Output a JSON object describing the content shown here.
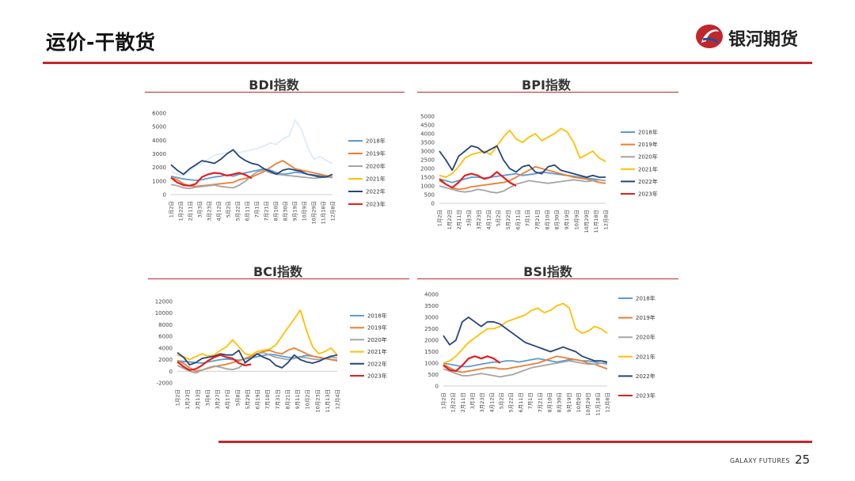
{
  "header": {
    "title": "运价-干散货",
    "logo_text": "银河期货"
  },
  "footer": {
    "brand": "GALAXY FUTURES",
    "page_number": "25"
  },
  "colors": {
    "accent": "#c0272d",
    "2018": "#5b9bd5",
    "2019": "#ed7d31",
    "2020": "#a5a5a5",
    "2021": "#ffc000",
    "2021_bdi": "#dcebf7",
    "2022": "#264478",
    "2023": "#e02020"
  },
  "chart_data": [
    {
      "id": "bdi",
      "type": "line",
      "title": "BDI指数",
      "yticks": [
        0,
        1000,
        2000,
        3000,
        4000,
        5000,
        6000
      ],
      "ylim": [
        0,
        6000
      ],
      "xticks": [
        "1月2日",
        "1月22日",
        "2月11日",
        "3月3日",
        "3月23日",
        "4月12日",
        "5月2日",
        "5月22日",
        "6月11日",
        "7月1日",
        "7月21日",
        "8月10日",
        "8月30日",
        "9月19日",
        "10月9日",
        "10月29日",
        "11月18日",
        "12月8日"
      ],
      "legend": [
        "2018年",
        "2019年",
        "2020年",
        "2021年",
        "2022年",
        "2023年"
      ],
      "series": [
        {
          "name": "2018年",
          "values": [
            1350,
            1250,
            1150,
            1100,
            1050,
            1100,
            1200,
            1300,
            1350,
            1450,
            1350,
            1500,
            1600,
            1700,
            1800,
            1900,
            1800,
            1600,
            1500,
            1550,
            1650,
            1600,
            1500,
            1450,
            1400,
            1350,
            1300
          ]
        },
        {
          "name": "2019年",
          "values": [
            1250,
            1100,
            800,
            650,
            600,
            650,
            700,
            750,
            800,
            850,
            900,
            1100,
            1200,
            1300,
            1500,
            1700,
            2000,
            2300,
            2500,
            2200,
            1900,
            1800,
            1700,
            1600,
            1500,
            1400,
            1300
          ]
        },
        {
          "name": "2020年",
          "values": [
            750,
            650,
            500,
            450,
            550,
            600,
            650,
            700,
            600,
            550,
            500,
            700,
            1000,
            1400,
            1700,
            1800,
            1600,
            1500,
            1450,
            1400,
            1350,
            1300,
            1250,
            1200,
            1250,
            1300,
            1250
          ]
        },
        {
          "name": "2021年",
          "values": [
            1700,
            1500,
            1400,
            1700,
            2100,
            2300,
            2600,
            2900,
            3000,
            3100,
            3200,
            3100,
            3200,
            3300,
            3400,
            3600,
            3800,
            3700,
            4100,
            4300,
            5500,
            4800,
            3500,
            2600,
            2800,
            2500,
            2300
          ]
        },
        {
          "name": "2022年",
          "values": [
            2200,
            1800,
            1500,
            1900,
            2200,
            2500,
            2400,
            2300,
            2600,
            3000,
            3300,
            2800,
            2500,
            2300,
            2200,
            1900,
            1700,
            1500,
            1800,
            1900,
            1800,
            1700,
            1500,
            1400,
            1300,
            1300,
            1500
          ]
        },
        {
          "name": "2023年",
          "values": [
            1250,
            900,
            700,
            650,
            800,
            1300,
            1500,
            1600,
            1550,
            1400,
            1500,
            1600,
            1450,
            1200
          ]
        }
      ]
    },
    {
      "id": "bpi",
      "type": "line",
      "title": "BPI指数",
      "yticks": [
        0,
        500,
        1000,
        1500,
        2000,
        2500,
        3000,
        3500,
        4000,
        4500,
        5000
      ],
      "ylim": [
        0,
        5000
      ],
      "xticks": [
        "1月2日",
        "1月22日",
        "2月11日",
        "3月3日",
        "3月23日",
        "4月12日",
        "5月2日",
        "5月22日",
        "6月11日",
        "7月1日",
        "7月21日",
        "8月10日",
        "8月30日",
        "9月19日",
        "10月9日",
        "10月29日",
        "11月18日",
        "12月8日"
      ],
      "legend": [
        "2018年",
        "2019年",
        "2020年",
        "2021年",
        "2022年",
        "2023年"
      ],
      "series": [
        {
          "name": "2018年",
          "values": [
            1400,
            1300,
            1200,
            1300,
            1400,
            1500,
            1500,
            1450,
            1500,
            1550,
            1600,
            1650,
            1700,
            1600,
            1650,
            1700,
            1800,
            1750,
            1700,
            1650,
            1600,
            1550,
            1500,
            1450,
            1400,
            1350,
            1300
          ]
        },
        {
          "name": "2019年",
          "values": [
            1300,
            1100,
            900,
            800,
            850,
            950,
            1000,
            1050,
            1100,
            1150,
            1200,
            1300,
            1500,
            1700,
            1900,
            2100,
            2000,
            1900,
            1800,
            1700,
            1600,
            1500,
            1450,
            1400,
            1300,
            1200,
            1150
          ]
        },
        {
          "name": "2020年",
          "values": [
            1000,
            900,
            800,
            700,
            650,
            700,
            800,
            750,
            650,
            600,
            700,
            900,
            1100,
            1200,
            1300,
            1250,
            1200,
            1150,
            1200,
            1250,
            1300,
            1350,
            1300,
            1250,
            1300,
            1350,
            1300
          ]
        },
        {
          "name": "2021年",
          "values": [
            1600,
            1500,
            1700,
            2100,
            2600,
            2800,
            2900,
            3000,
            2800,
            3300,
            3800,
            4200,
            3700,
            3500,
            3800,
            4000,
            3600,
            3800,
            4000,
            4300,
            4100,
            3500,
            2600,
            2800,
            3000,
            2600,
            2400
          ]
        },
        {
          "name": "2022年",
          "values": [
            3000,
            2500,
            1900,
            2700,
            3000,
            3300,
            3200,
            2900,
            3100,
            3300,
            2500,
            2000,
            1800,
            2100,
            2200,
            1800,
            1700,
            2100,
            2200,
            1900,
            1800,
            1700,
            1600,
            1500,
            1600,
            1500,
            1500
          ]
        },
        {
          "name": "2023年",
          "values": [
            1400,
            1100,
            900,
            1200,
            1600,
            1700,
            1600,
            1400,
            1500,
            1800,
            1500,
            1200,
            1000
          ]
        }
      ]
    },
    {
      "id": "bci",
      "type": "line",
      "title": "BCI指数",
      "yticks": [
        -2000,
        0,
        2000,
        4000,
        6000,
        8000,
        10000,
        12000
      ],
      "ylim": [
        -2000,
        12000
      ],
      "xticks": [
        "1月2日",
        "1月23日",
        "2月13日",
        "3月6日",
        "3月27日",
        "4月17日",
        "5月8日",
        "5月29日",
        "6月19日",
        "7月10日",
        "7月31日",
        "8月21日",
        "9月11日",
        "10月2日",
        "10月23日",
        "11月13日",
        "12月4日"
      ],
      "legend": [
        "2018年",
        "2019年",
        "2020年",
        "2021年",
        "2022年",
        "2023年"
      ],
      "series": [
        {
          "name": "2018年",
          "values": [
            1800,
            1700,
            1600,
            1500,
            1400,
            1600,
            1800,
            2000,
            2100,
            2000,
            1900,
            2100,
            2300,
            2500,
            2700,
            2900,
            2800,
            2600,
            2400,
            2300,
            2500,
            2700,
            2600,
            2400,
            2200,
            2000,
            1900
          ]
        },
        {
          "name": "2019年",
          "values": [
            1800,
            1400,
            600,
            0,
            200,
            500,
            800,
            1000,
            1200,
            1500,
            1800,
            2200,
            2600,
            3000,
            3400,
            3600,
            3200,
            3000,
            3600,
            4000,
            3500,
            3000,
            2600,
            2400,
            2200,
            2000,
            1800
          ]
        },
        {
          "name": "2020年",
          "values": [
            1000,
            500,
            0,
            -300,
            200,
            600,
            900,
            700,
            400,
            300,
            600,
            1400,
            2200,
            3000,
            3200,
            2800,
            2400,
            2200,
            2000,
            2200,
            2400,
            2300,
            2100,
            2000,
            2200,
            2400,
            2300
          ]
        },
        {
          "name": "2021年",
          "values": [
            2800,
            2500,
            2000,
            2500,
            3000,
            2600,
            2800,
            3600,
            4200,
            5400,
            4200,
            3000,
            2800,
            3400,
            3600,
            3800,
            4500,
            6000,
            7500,
            9000,
            10500,
            7000,
            4200,
            3000,
            3400,
            4000,
            2800
          ]
        },
        {
          "name": "2022年",
          "values": [
            3200,
            2400,
            1100,
            1500,
            2200,
            2400,
            2600,
            3000,
            2800,
            2800,
            3600,
            1500,
            2200,
            3000,
            2400,
            2000,
            1000,
            600,
            1500,
            2800,
            2000,
            1600,
            1400,
            1700,
            2200,
            2600,
            2800
          ]
        },
        {
          "name": "2023年",
          "values": [
            1600,
            800,
            200,
            400,
            1000,
            1800,
            2400,
            2800,
            2400,
            2200,
            1400,
            1000,
            1200
          ]
        }
      ]
    },
    {
      "id": "bsi",
      "type": "line",
      "title": "BSI指数",
      "yticks": [
        0,
        500,
        1000,
        1500,
        2000,
        2500,
        3000,
        3500,
        4000
      ],
      "ylim": [
        0,
        4000
      ],
      "xticks": [
        "1月2日",
        "1月22日",
        "2月11日",
        "3月3日",
        "3月23日",
        "4月12日",
        "5月2日",
        "5月22日",
        "6月11日",
        "7月1日",
        "7月21日",
        "8月10日",
        "8月30日",
        "9月19日",
        "10月9日",
        "10月29日",
        "11月18日",
        "12月8日"
      ],
      "legend": [
        "2018年",
        "2019年",
        "2020年",
        "2021年",
        "2022年",
        "2023年"
      ],
      "series": [
        {
          "name": "2018年",
          "values": [
            1000,
            950,
            900,
            850,
            850,
            900,
            950,
            1000,
            1050,
            1050,
            1100,
            1100,
            1050,
            1100,
            1150,
            1200,
            1150,
            1100,
            1050,
            1100,
            1150,
            1150,
            1100,
            1100,
            1050,
            1000,
            1000
          ]
        },
        {
          "name": "2019年",
          "values": [
            950,
            800,
            650,
            600,
            650,
            700,
            750,
            800,
            800,
            750,
            750,
            800,
            850,
            900,
            950,
            1000,
            1100,
            1200,
            1300,
            1250,
            1200,
            1150,
            1100,
            1000,
            950,
            850,
            750
          ]
        },
        {
          "name": "2020年",
          "values": [
            750,
            650,
            550,
            450,
            450,
            500,
            550,
            500,
            450,
            400,
            450,
            500,
            600,
            700,
            800,
            850,
            900,
            950,
            1000,
            1050,
            1100,
            1050,
            1000,
            950,
            950,
            1000,
            950
          ]
        },
        {
          "name": "2021年",
          "values": [
            1000,
            1100,
            1300,
            1600,
            1900,
            2100,
            2300,
            2500,
            2500,
            2600,
            2800,
            2900,
            3000,
            3100,
            3300,
            3400,
            3200,
            3300,
            3500,
            3600,
            3400,
            2500,
            2300,
            2400,
            2600,
            2500,
            2300
          ]
        },
        {
          "name": "2022年",
          "values": [
            2200,
            1800,
            2000,
            2800,
            3000,
            2800,
            2600,
            2800,
            2800,
            2700,
            2500,
            2300,
            2100,
            1900,
            1800,
            1700,
            1600,
            1500,
            1600,
            1700,
            1600,
            1500,
            1300,
            1200,
            1100,
            1100,
            1050
          ]
        },
        {
          "name": "2023年",
          "values": [
            900,
            700,
            650,
            900,
            1200,
            1300,
            1200,
            1300,
            1200,
            1000
          ]
        }
      ]
    }
  ]
}
